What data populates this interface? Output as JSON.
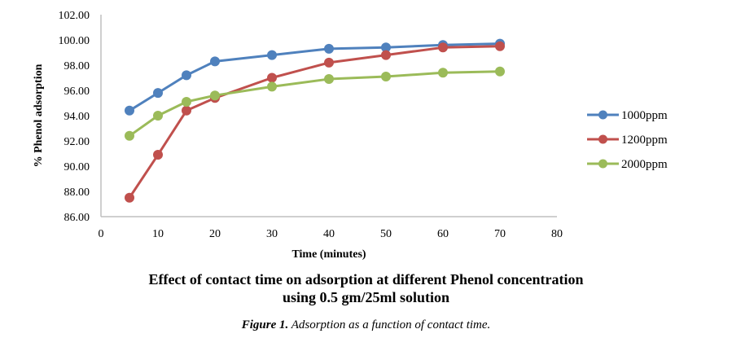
{
  "chart_data": {
    "type": "line",
    "title": "Effect of contact time on  adsorption at different Phenol concentration",
    "subtitle": "using 0.5 gm/25ml solution",
    "xlabel": "Time (minutes)",
    "ylabel": "% Phenol adsorption",
    "xlim": [
      0,
      80
    ],
    "ylim": [
      86,
      102
    ],
    "x_ticks": [
      "0",
      "10",
      "20",
      "30",
      "40",
      "50",
      "60",
      "70",
      "80"
    ],
    "y_ticks": [
      "86.00",
      "88.00",
      "90.00",
      "92.00",
      "94.00",
      "96.00",
      "98.00",
      "100.00",
      "102.00"
    ],
    "grid": false,
    "legend_position": "right",
    "x": [
      5,
      10,
      15,
      20,
      30,
      40,
      50,
      60,
      70
    ],
    "series": [
      {
        "name": "1000ppm",
        "color": "#4f81bd",
        "values": [
          94.4,
          95.8,
          97.2,
          98.3,
          98.8,
          99.3,
          99.4,
          99.6,
          99.7
        ]
      },
      {
        "name": "1200ppm",
        "color": "#c0504d",
        "values": [
          87.5,
          90.9,
          94.4,
          95.4,
          97.0,
          98.2,
          98.8,
          99.4,
          99.5
        ]
      },
      {
        "name": "2000ppm",
        "color": "#9bbb59",
        "values": [
          92.4,
          94.0,
          95.1,
          95.6,
          96.3,
          96.9,
          97.1,
          97.4,
          97.5
        ]
      }
    ]
  },
  "caption": {
    "label": "Figure 1.",
    "text": " Adsorption as a function of contact time."
  }
}
